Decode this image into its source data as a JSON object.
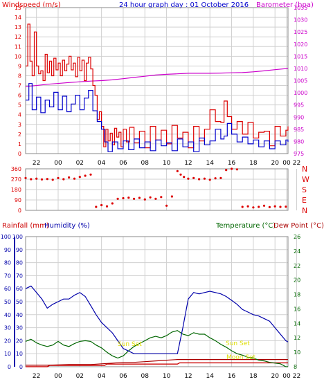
{
  "colors": {
    "wind_avg": "#0000cc",
    "wind_gust": "#dd0000",
    "barometer": "#cc00cc",
    "wind_dir": "#dd0000",
    "rain": "#cc0000",
    "humidity": "#0000aa",
    "temperature": "#006600",
    "dew_point": "#aa0000",
    "sun": "#dddd00",
    "grid": "#d0d0d0"
  },
  "chart_data": [
    {
      "type": "line",
      "title": "24 hour graph day : 01 October 2016",
      "ylabel": "Windspeed (m/s)",
      "y2label": "Barometer (hpa)",
      "ylim": [
        0,
        15
      ],
      "y2lim": [
        975,
        1035
      ],
      "yticks": [
        "0",
        "1",
        "2",
        "3",
        "4",
        "5",
        "6",
        "7",
        "8",
        "9",
        "10",
        "11",
        "12",
        "13",
        "14",
        "15"
      ],
      "y2ticks": [
        "975",
        "980",
        "985",
        "990",
        "995",
        "1000",
        "1005",
        "1010",
        "1015",
        "1020",
        "1025",
        "1030",
        "1035"
      ],
      "xlim": [
        21,
        45.2
      ],
      "x_tick_labels": [
        "22",
        "00",
        "02",
        "04",
        "06",
        "08",
        "10",
        "12",
        "14",
        "16",
        "18",
        "20",
        "22",
        "00"
      ],
      "grid": true,
      "series": [
        {
          "key": "gust",
          "x": [
            21,
            21.2,
            21.4,
            21.6,
            21.8,
            22,
            22.2,
            22.4,
            22.6,
            22.8,
            23,
            23.2,
            23.4,
            23.6,
            23.8,
            24,
            24.2,
            24.4,
            24.6,
            24.8,
            25,
            25.2,
            25.4,
            25.6,
            25.8,
            26,
            26.2,
            26.4,
            26.6,
            26.8,
            27,
            27.2,
            27.4,
            27.6,
            27.8,
            28,
            28.2,
            28.4,
            28.6,
            28.8,
            29,
            29.2,
            29.4,
            29.6,
            29.8,
            30,
            30.3,
            30.6,
            31,
            31.5,
            32,
            32.5,
            33,
            33.5,
            34,
            34.5,
            35,
            35.5,
            36,
            36.5,
            37,
            37.5,
            38,
            38.5,
            39,
            39.3,
            39.6,
            40,
            40.5,
            41,
            41.5,
            42,
            42.5,
            43,
            43.5,
            44,
            44.5,
            45,
            45.2
          ],
          "values": [
            9,
            13.3,
            9.5,
            8,
            12.5,
            9,
            8.2,
            8.5,
            7.5,
            10.2,
            8.3,
            9.5,
            8,
            9.8,
            8.6,
            9.3,
            8,
            9.6,
            8.5,
            9.2,
            10,
            8.6,
            9.3,
            7.9,
            9.9,
            8.5,
            9.6,
            7.5,
            9.3,
            9.9,
            8.7,
            7,
            6,
            3.5,
            4.3,
            2.8,
            0.7,
            2.5,
            1.3,
            2.1,
            0.9,
            2.6,
            1.7,
            2.2,
            0.7,
            2.5,
            1.2,
            2.7,
            1.1,
            2.3,
            0.6,
            2.8,
            1.4,
            2.4,
            1.0,
            2.9,
            1.6,
            2.2,
            0.6,
            2.8,
            1.3,
            2.5,
            4.5,
            3.3,
            3.2,
            5.4,
            3.8,
            2.5,
            3.3,
            2.0,
            3.2,
            1.6,
            2.2,
            2.3,
            0.8,
            2.8,
            1.8,
            2.4,
            2.8
          ]
        },
        {
          "key": "average",
          "x": [
            21,
            21.3,
            21.6,
            22,
            22.4,
            22.8,
            23.2,
            23.6,
            24,
            24.4,
            24.8,
            25.2,
            25.6,
            26,
            26.4,
            26.8,
            27.2,
            27.6,
            28,
            28.3,
            28.6,
            29,
            29.5,
            30,
            30.5,
            31,
            31.5,
            32,
            32.5,
            33,
            33.5,
            34,
            34.5,
            35,
            35.5,
            36,
            36.5,
            37,
            37.5,
            38,
            38.5,
            39,
            39.3,
            39.6,
            40,
            40.5,
            41,
            41.5,
            42,
            42.5,
            43,
            43.5,
            44,
            44.5,
            45,
            45.2
          ],
          "values": [
            5.5,
            7.2,
            4.5,
            5.8,
            4.2,
            5.5,
            4.8,
            6.3,
            4.5,
            5.9,
            4.3,
            5.1,
            6,
            4.5,
            5.7,
            6.5,
            4.4,
            3.3,
            2.5,
            1.2,
            0.2,
            1.2,
            0.5,
            1.3,
            0.4,
            1.5,
            0.6,
            1.2,
            0.3,
            1.4,
            0.8,
            1.1,
            0.3,
            1.5,
            0.7,
            1.2,
            0.2,
            1.6,
            0.9,
            1.3,
            2.5,
            1.5,
            1.8,
            3.1,
            2.0,
            1.2,
            1.7,
            1.0,
            1.4,
            0.7,
            1.3,
            0.5,
            1.3,
            0.9,
            1.4,
            1.2
          ]
        },
        {
          "key": "barometer",
          "x": [
            21,
            23,
            25,
            27,
            28,
            29,
            30,
            31,
            32,
            33,
            34,
            35,
            36,
            37,
            38,
            39,
            40,
            41,
            42,
            43,
            44,
            45.2
          ],
          "values": [
            1002.5,
            1003.5,
            1004.2,
            1004.8,
            1005,
            1005.3,
            1005.8,
            1006.3,
            1006.8,
            1007.3,
            1007.6,
            1007.8,
            1008,
            1008,
            1008,
            1008.1,
            1008.2,
            1008.3,
            1008.6,
            1009,
            1009.5,
            1010
          ]
        }
      ]
    },
    {
      "type": "scatter",
      "ylabel": "Wind direction",
      "ylim": [
        0,
        360
      ],
      "yticks": [
        "0",
        "90",
        "180",
        "270",
        "360"
      ],
      "compass_labels": [
        "N",
        "W",
        "S",
        "E",
        "N"
      ],
      "xlim": [
        21,
        45.2
      ],
      "x_tick_labels": [
        "22",
        "00",
        "02",
        "04",
        "06",
        "08",
        "10",
        "12",
        "14",
        "16",
        "18",
        "20",
        "22",
        "00"
      ],
      "grid": true,
      "series": [
        {
          "key": "direction",
          "x": [
            21,
            21.5,
            22,
            22.5,
            23,
            23.5,
            24,
            24.5,
            25,
            25.5,
            26,
            26.5,
            27,
            27.5,
            28,
            28.5,
            29,
            29.5,
            30,
            30.5,
            31,
            31.5,
            32,
            32.5,
            33,
            33.5,
            34,
            34.5,
            35,
            35.3,
            35.6,
            36,
            36.5,
            37,
            37.5,
            38,
            38.5,
            39,
            39.5,
            40,
            40.5,
            41,
            41.5,
            42,
            42.5,
            43,
            43.5,
            44,
            44.5,
            45
          ],
          "values": [
            280,
            270,
            275,
            268,
            272,
            265,
            280,
            270,
            285,
            275,
            290,
            300,
            310,
            30,
            45,
            35,
            60,
            100,
            105,
            110,
            100,
            108,
            95,
            112,
            100,
            115,
            40,
            120,
            340,
            310,
            290,
            275,
            280,
            270,
            275,
            265,
            278,
            280,
            350,
            360,
            355,
            30,
            35,
            25,
            30,
            40,
            28,
            35,
            30,
            32
          ]
        }
      ]
    },
    {
      "type": "line",
      "ylabel": "Rainfall (mm)",
      "ylabel_humidity": "Humidity (%)",
      "y2label": "Temperature (°C)",
      "y2label_dew": "Dew Point (°C)",
      "ylim": [
        0,
        100
      ],
      "y2lim": [
        8,
        26
      ],
      "yticks": [
        "0",
        "10",
        "20",
        "30",
        "40",
        "50",
        "60",
        "70",
        "80",
        "90",
        "100"
      ],
      "y2ticks": [
        "8",
        "10",
        "12",
        "14",
        "16",
        "18",
        "20",
        "22",
        "24",
        "26"
      ],
      "xlim": [
        21,
        45.2
      ],
      "x_tick_labels": [
        "22",
        "00",
        "02",
        "04",
        "06",
        "08",
        "10",
        "12",
        "14",
        "16",
        "18",
        "20",
        "22",
        "00"
      ],
      "annotations": [
        "Sun Set",
        "Sun Set",
        "Moon Set"
      ],
      "grid": true,
      "series": [
        {
          "key": "humidity",
          "x": [
            21,
            21.5,
            22,
            22.5,
            23,
            23.5,
            24,
            24.5,
            25,
            25.5,
            26,
            26.5,
            27,
            27.5,
            28,
            28.5,
            29,
            29.5,
            30,
            30.5,
            31,
            31.5,
            32,
            32.5,
            33,
            33.5,
            34,
            34.5,
            35,
            35.5,
            36,
            36.5,
            37,
            37.5,
            38,
            38.5,
            39,
            39.5,
            40,
            40.5,
            41,
            41.5,
            42,
            42.5,
            43,
            43.5,
            44,
            44.5,
            45,
            45.2
          ],
          "values": [
            60,
            62,
            57,
            52,
            45,
            48,
            50,
            52,
            52,
            55,
            57,
            54,
            47,
            40,
            34,
            30,
            26,
            20,
            14,
            12,
            10,
            10,
            10,
            10,
            10,
            10,
            10,
            10,
            10,
            30,
            52,
            57,
            56,
            57,
            58,
            57,
            56,
            54,
            51,
            48,
            44,
            42,
            40,
            39,
            37,
            35,
            30,
            25,
            20,
            19
          ]
        },
        {
          "key": "temperature",
          "x": [
            21,
            21.5,
            22,
            22.5,
            23,
            23.5,
            24,
            24.5,
            25,
            25.5,
            26,
            26.5,
            27,
            27.5,
            28,
            28.5,
            29,
            29.5,
            30,
            30.5,
            31,
            31.5,
            32,
            32.5,
            33,
            33.5,
            34,
            34.5,
            35,
            35.5,
            36,
            36.5,
            37,
            37.5,
            38,
            38.5,
            39,
            39.5,
            40,
            40.5,
            41,
            41.5,
            42,
            42.5,
            43,
            43.5,
            44,
            44.5,
            45,
            45.2
          ],
          "values": [
            11.5,
            11.8,
            11.3,
            11,
            10.8,
            11,
            11.5,
            11,
            10.8,
            11.2,
            11.5,
            11.6,
            11.5,
            11,
            10.6,
            10,
            9.5,
            9.2,
            9.5,
            10.2,
            10.8,
            11.2,
            11.6,
            12,
            12.2,
            12,
            12.3,
            12.8,
            13,
            12.5,
            12.3,
            12.7,
            12.5,
            12.5,
            12,
            11.6,
            11.1,
            10.7,
            10.2,
            9.8,
            9.6,
            9.3,
            9.2,
            8.9,
            8.8,
            8.6,
            8.5,
            8.4,
            8,
            8
          ]
        },
        {
          "key": "dewpoint",
          "x": [
            21,
            23,
            25,
            27,
            28,
            29,
            30,
            31,
            32,
            33,
            34,
            35,
            36,
            37,
            38,
            39,
            40,
            41,
            42,
            43,
            44,
            45.2
          ],
          "values": [
            8.2,
            8.2,
            8.3,
            8.3,
            8.4,
            8.5,
            8.6,
            8.6,
            8.7,
            8.8,
            8.9,
            9,
            9,
            9,
            9,
            9,
            9,
            9,
            9,
            9,
            9,
            9
          ]
        },
        {
          "key": "rainfall",
          "x": [
            21,
            23,
            23.2,
            28.3,
            28.5,
            35,
            35.2,
            45.2
          ],
          "values": [
            0,
            0,
            1,
            1,
            2,
            2,
            3,
            3
          ]
        }
      ]
    }
  ]
}
